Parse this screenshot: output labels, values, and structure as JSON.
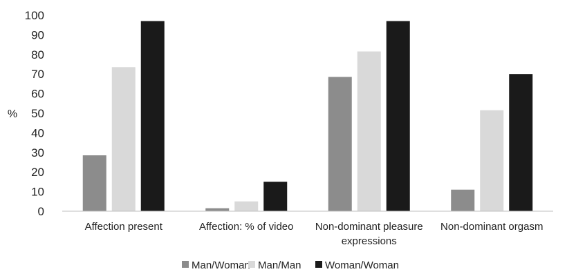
{
  "chart_data": {
    "type": "bar",
    "title": "",
    "xlabel": "",
    "ylabel": "%",
    "ylim": [
      0,
      100
    ],
    "yticks": [
      0,
      10,
      20,
      30,
      40,
      50,
      60,
      70,
      80,
      90,
      100
    ],
    "grid": false,
    "legend_position": "bottom",
    "categories": [
      [
        "Affection present"
      ],
      [
        "Affection: % of video"
      ],
      [
        "Non-dominant pleasure",
        "expressions"
      ],
      [
        "Non-dominant orgasm"
      ]
    ],
    "series": [
      {
        "name": "Man/Woman",
        "color": "#8c8c8c",
        "values": [
          28.5,
          1.5,
          68.5,
          11
        ]
      },
      {
        "name": "Man/Man",
        "color": "#d9d9d9",
        "values": [
          73.5,
          5,
          81.5,
          51.5
        ]
      },
      {
        "name": "Woman/Woman",
        "color": "#1a1a1a",
        "values": [
          97,
          15,
          97,
          70
        ]
      }
    ]
  }
}
